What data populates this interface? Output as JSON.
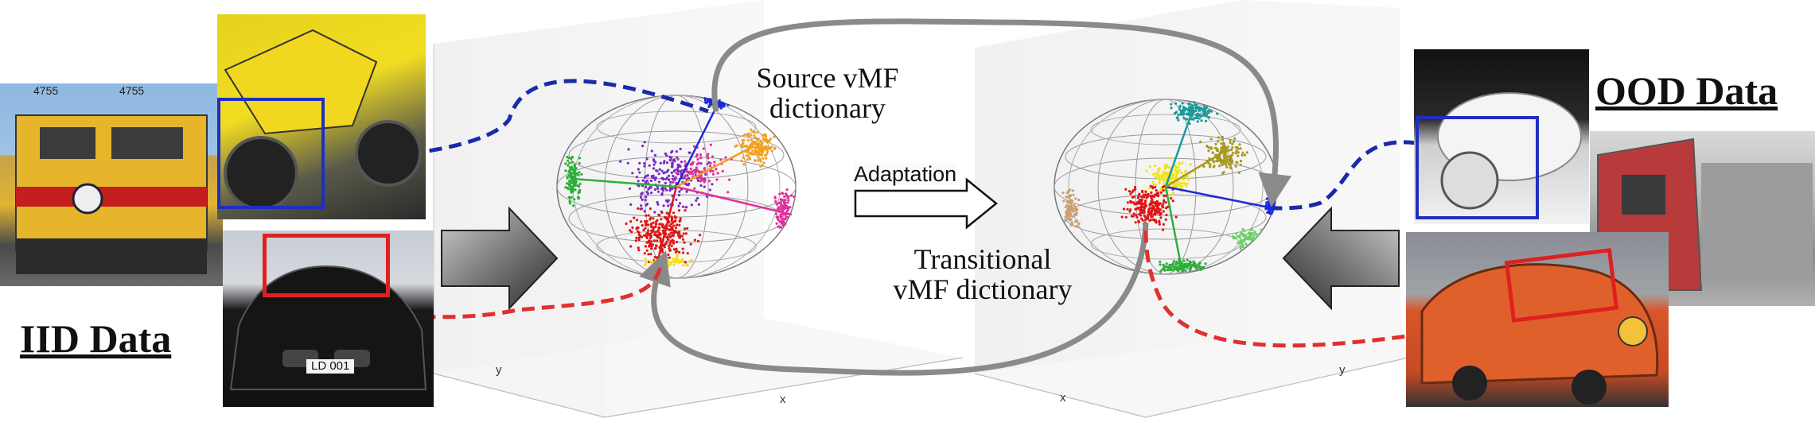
{
  "labels": {
    "iid": "IID Data",
    "ood": "OOD Data",
    "source_dict_line1": "Source vMF",
    "source_dict_line2": "dictionary",
    "transitional_line1": "Transitional",
    "transitional_line2": "vMF dictionary",
    "adaptation": "Adaptation",
    "axis_y_left": "y",
    "axis_x_left": "x",
    "axis_y_right": "y",
    "axis_x_right": "x",
    "train_number_1": "4755",
    "train_number_2": "4755",
    "plate": "LD 001"
  },
  "colors": {
    "iid_box": "#e02020",
    "part_box": "#1f2fbf",
    "dash_blue": "#1a2aa8",
    "dash_red": "#e03030",
    "loop_arrow": "#8a8a8a",
    "cluster_red": "#e01515",
    "cluster_blue": "#1a2ad8",
    "cluster_orange": "#f0a020",
    "cluster_green": "#2fae3a",
    "cluster_magenta": "#e0309a",
    "cluster_yellow": "#f2e21a",
    "cluster_purple": "#7a2ac8",
    "cluster_teal": "#1a9a9a",
    "cluster_olive": "#a89a20",
    "cluster_tan": "#caa070",
    "cluster_lightgreen": "#6ad06a"
  },
  "icons": [
    "train-photo",
    "motorbike-photo",
    "car-photo",
    "snow-motorbike-photo",
    "snow-train-photo",
    "cat-car-photo",
    "block-arrow-right",
    "block-arrow-left",
    "hollow-arrow"
  ]
}
